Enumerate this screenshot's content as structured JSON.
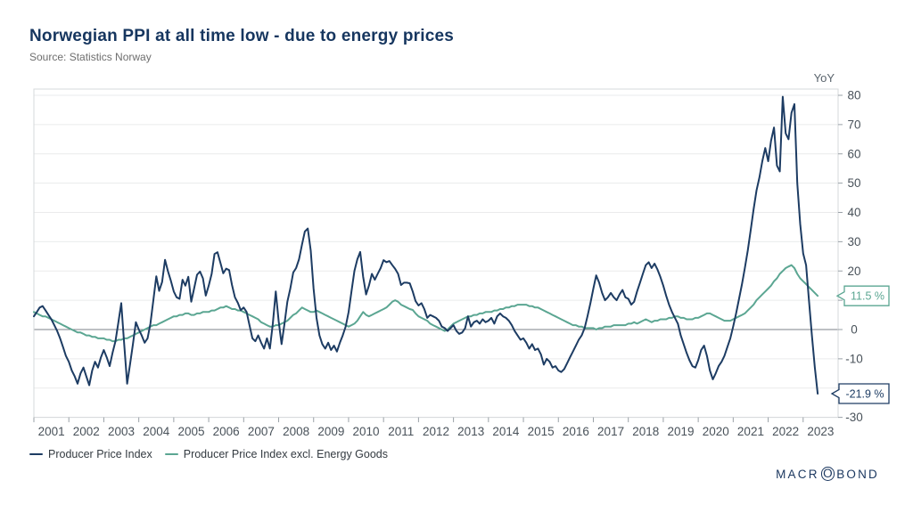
{
  "header": {
    "title": "Norwegian PPI at all time low - due to energy prices",
    "source": "Source: Statistics Norway"
  },
  "legend": {
    "items": [
      {
        "label": "Producer Price Index",
        "color": "#1d3c63"
      },
      {
        "label": "Producer Price Index excl. Energy Goods",
        "color": "#5ba692"
      }
    ]
  },
  "logo": {
    "pre": "MACR",
    "o": "O",
    "post": "BOND"
  },
  "colors": {
    "navy": "#1d3c63",
    "teal": "#5ba692",
    "title": "#16365f",
    "source_gray": "#6e6e6e",
    "tick_gray": "#49525a",
    "grid": "#eaebec",
    "zero_line": "#7d8288",
    "frame": "#d6d9db",
    "tick_mark": "#9aa1a7",
    "background": "#ffffff"
  },
  "chart_data": {
    "type": "line",
    "title": "Norwegian PPI at all time low - due to energy prices",
    "source": "Source: Statistics Norway",
    "unit_label": "YoY",
    "frequency": "monthly",
    "grid": true,
    "legend_position": "bottom-left",
    "x_domain": [
      2001,
      2024
    ],
    "ylim": [
      -30,
      82
    ],
    "y_ticks": [
      80,
      70,
      60,
      50,
      40,
      30,
      20,
      10,
      0,
      -10,
      -20,
      -30
    ],
    "x_ticks": [
      2001,
      2002,
      2003,
      2004,
      2005,
      2006,
      2007,
      2008,
      2009,
      2010,
      2011,
      2012,
      2013,
      2014,
      2015,
      2016,
      2017,
      2018,
      2019,
      2020,
      2021,
      2022,
      2023
    ],
    "series": [
      {
        "name": "Producer Price Index",
        "color": "#1d3c63",
        "start": 2001.0,
        "end_label": "-21.9 %",
        "last_value": -21.9,
        "values": [
          4.5,
          6,
          7.5,
          8,
          6.5,
          5,
          3.5,
          1.5,
          -0.5,
          -3,
          -6,
          -9,
          -11,
          -14,
          -16,
          -18.5,
          -15,
          -13,
          -16,
          -19,
          -14,
          -11,
          -13,
          -9.5,
          -7,
          -9.5,
          -12.5,
          -8,
          -4,
          2.5,
          9,
          -5,
          -18.5,
          -12,
          -5,
          2.5,
          0,
          -2,
          -4.5,
          -3,
          2,
          10,
          18.2,
          13.2,
          16.2,
          23.8,
          20,
          16.7,
          13,
          11,
          10.5,
          17,
          15,
          18,
          9.5,
          14,
          18.7,
          19.8,
          17.5,
          11.6,
          15,
          19,
          25.8,
          26.4,
          22.8,
          19.2,
          20.8,
          20.3,
          15.2,
          11,
          9.1,
          6.6,
          7.5,
          6,
          1.5,
          -3,
          -4,
          -2,
          -4.5,
          -6.5,
          -3,
          -6.5,
          2,
          13,
          3,
          -5,
          2,
          9.5,
          14,
          19.5,
          21,
          24,
          29,
          33.5,
          34.5,
          27,
          14,
          4,
          -2,
          -5,
          -6.5,
          -4.5,
          -7,
          -5.5,
          -7.5,
          -4.5,
          -2,
          1,
          6,
          13,
          20,
          24,
          26.5,
          18,
          12,
          15,
          19,
          17,
          19,
          21,
          23.7,
          23,
          23.4,
          22,
          20.7,
          19,
          15.2,
          16,
          16,
          15.8,
          13,
          9.7,
          8.2,
          9,
          7,
          4,
          5,
          4.5,
          4,
          3,
          1,
          0.5,
          -0.5,
          0.5,
          1.5,
          -0.5,
          -1.5,
          -1,
          0.5,
          4.5,
          1,
          2.5,
          3,
          2,
          3.5,
          2.5,
          3,
          4,
          2,
          4.5,
          5.5,
          4.5,
          4,
          3,
          1.5,
          -0.5,
          -2,
          -3.5,
          -3,
          -4.5,
          -6.5,
          -5,
          -7,
          -6.5,
          -8.5,
          -12,
          -10,
          -11,
          -13,
          -12.5,
          -14,
          -14.5,
          -13.5,
          -11.5,
          -9.5,
          -7.5,
          -5.5,
          -3.5,
          -2,
          0.5,
          4.5,
          9,
          14,
          18.5,
          16,
          12.5,
          10,
          11,
          12.5,
          11,
          10,
          12,
          13.5,
          11,
          10.5,
          8.5,
          9.5,
          13,
          16,
          19,
          22,
          23,
          21,
          22.5,
          20.5,
          18,
          15,
          11.5,
          8.5,
          6,
          4,
          2,
          -2,
          -5,
          -8,
          -10.5,
          -12.5,
          -13,
          -10.5,
          -7,
          -5.5,
          -9,
          -14,
          -17,
          -15,
          -12.5,
          -11,
          -9,
          -6,
          -3,
          1,
          5.5,
          10.5,
          15.5,
          21,
          27,
          34,
          41,
          47.5,
          52,
          57.5,
          62,
          57.5,
          64.5,
          69,
          56,
          54,
          79.5,
          67,
          65,
          74,
          77,
          50,
          36,
          26,
          22,
          10,
          -2,
          -13,
          -21.9
        ]
      },
      {
        "name": "Producer Price Index excl. Energy Goods",
        "color": "#5ba692",
        "start": 2001.0,
        "end_label": "11.5 %",
        "last_value": 11.5,
        "values": [
          6,
          5.5,
          5,
          4.5,
          4.5,
          4,
          3.5,
          3,
          2.5,
          2,
          1.5,
          1,
          0.5,
          0,
          -0.5,
          -1,
          -1,
          -1.5,
          -2,
          -2,
          -2.5,
          -2.5,
          -3,
          -3,
          -3,
          -3.5,
          -3.5,
          -4,
          -4,
          -3.5,
          -3.5,
          -3,
          -3,
          -2.5,
          -2,
          -1.5,
          -1,
          -0.5,
          0,
          0.5,
          1,
          1.5,
          1.5,
          2,
          2.5,
          3,
          3.5,
          4,
          4.5,
          4.5,
          5,
          5,
          5.5,
          5.5,
          5,
          5,
          5.5,
          5.5,
          6,
          6,
          6,
          6.5,
          6.5,
          7,
          7.5,
          7.5,
          8,
          7.5,
          7,
          7,
          6.5,
          6.5,
          6,
          5.5,
          5,
          4.5,
          4,
          3.5,
          2.5,
          2,
          1.5,
          1,
          1,
          1.5,
          1.5,
          2,
          2.5,
          3,
          4,
          5,
          5.5,
          6.5,
          7.5,
          7,
          6.5,
          6,
          6,
          6.5,
          6,
          5.5,
          5,
          4.5,
          4,
          3.5,
          3,
          2.5,
          2,
          1.5,
          1,
          1.5,
          2,
          3,
          4.5,
          6,
          5,
          4.5,
          5,
          5.5,
          6,
          6.5,
          7,
          7.5,
          8.5,
          9.5,
          10,
          9.5,
          8.5,
          8,
          7.5,
          7,
          6.7,
          5.5,
          4.5,
          4,
          3.5,
          3,
          2,
          1.5,
          1,
          0.5,
          0,
          -0.5,
          0,
          1,
          2,
          2.5,
          3,
          3.5,
          4,
          4.5,
          4.5,
          5,
          5,
          5.5,
          5.5,
          6,
          6,
          6,
          6.5,
          6.5,
          7,
          7,
          7.5,
          7.5,
          8,
          8,
          8.5,
          8.5,
          8.5,
          8.5,
          8,
          8,
          7.5,
          7.5,
          7,
          6.5,
          6,
          5.5,
          5,
          4.5,
          4,
          3.5,
          3,
          2.5,
          2,
          1.5,
          1.5,
          1,
          1,
          0.5,
          0.5,
          0.5,
          0.5,
          0,
          0.5,
          0.5,
          1,
          1,
          1,
          1.5,
          1.5,
          1.5,
          1.5,
          1.5,
          2,
          2,
          2.5,
          2,
          2.5,
          3,
          3.5,
          3,
          2.5,
          3,
          3,
          3.5,
          3.5,
          3.5,
          4,
          4,
          4.5,
          4.5,
          4,
          4,
          3.5,
          3.5,
          3.5,
          4,
          4,
          4.5,
          5,
          5.5,
          5.5,
          5,
          4.5,
          4,
          3.5,
          3,
          3,
          3,
          3.5,
          4,
          4.5,
          5,
          5.5,
          6.5,
          7.5,
          8.5,
          10,
          11,
          12,
          13,
          14,
          15,
          16.5,
          17.5,
          19,
          20,
          21,
          21.5,
          22,
          21,
          19,
          17.5,
          16.5,
          15.5,
          14.5,
          13.5,
          12.5,
          11.5
        ]
      }
    ]
  }
}
